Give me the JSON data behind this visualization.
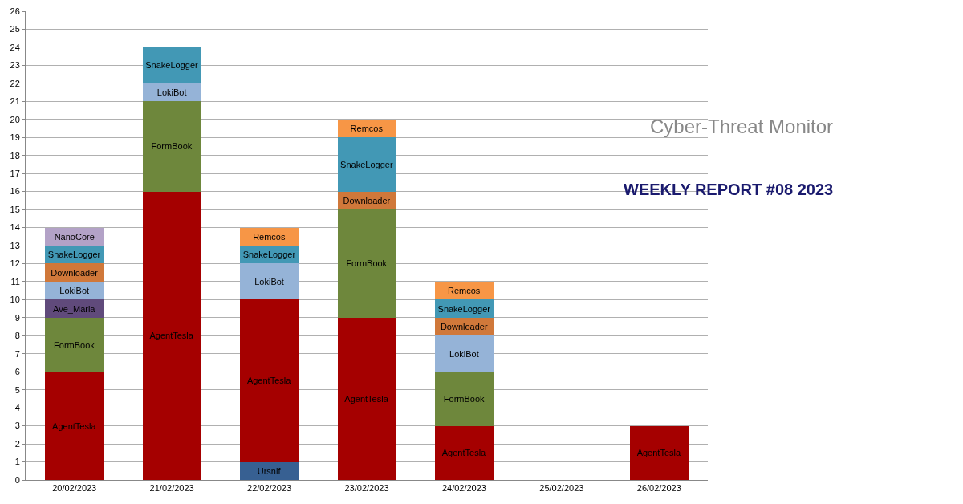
{
  "chart_data": {
    "type": "bar",
    "stacked": true,
    "title": "WEEKLY REPORT #08 2023",
    "subtitle": "Cyber-Threat Monitor",
    "categories": [
      "20/02/2023",
      "21/02/2023",
      "22/02/2023",
      "23/02/2023",
      "24/02/2023",
      "25/02/2023",
      "26/02/2023"
    ],
    "series": [
      {
        "name": "Ursnif",
        "color": "#376092",
        "values": [
          null,
          null,
          1,
          null,
          null,
          null,
          null
        ]
      },
      {
        "name": "AgentTesla",
        "color": "#a50000",
        "values": [
          6,
          16,
          9,
          9,
          3,
          null,
          3
        ]
      },
      {
        "name": "FormBook",
        "color": "#6e873c",
        "values": [
          3,
          5,
          null,
          6,
          3,
          null,
          null
        ]
      },
      {
        "name": "Ave_Maria",
        "color": "#604a7b",
        "values": [
          1,
          null,
          null,
          null,
          null,
          null,
          null
        ]
      },
      {
        "name": "LokiBot",
        "color": "#95b3d7",
        "values": [
          1,
          1,
          2,
          null,
          2,
          null,
          null
        ]
      },
      {
        "name": "Downloader",
        "color": "#d0783a",
        "values": [
          1,
          null,
          null,
          1,
          1,
          null,
          null
        ]
      },
      {
        "name": "SnakeLogger",
        "color": "#4298b5",
        "values": [
          1,
          2,
          1,
          3,
          1,
          null,
          null
        ]
      },
      {
        "name": "Remcos",
        "color": "#f79646",
        "values": [
          null,
          null,
          1,
          1,
          1,
          null,
          null
        ]
      },
      {
        "name": "NanoCore",
        "color": "#b3a2c7",
        "values": [
          1,
          null,
          null,
          null,
          null,
          null,
          null
        ]
      }
    ],
    "ylim": [
      0,
      26
    ],
    "yticks": [
      0,
      1,
      2,
      3,
      4,
      5,
      6,
      7,
      8,
      9,
      10,
      11,
      12,
      13,
      14,
      15,
      16,
      17,
      18,
      19,
      20,
      21,
      22,
      23,
      24,
      25,
      26
    ],
    "grid": "y",
    "legend": false
  }
}
